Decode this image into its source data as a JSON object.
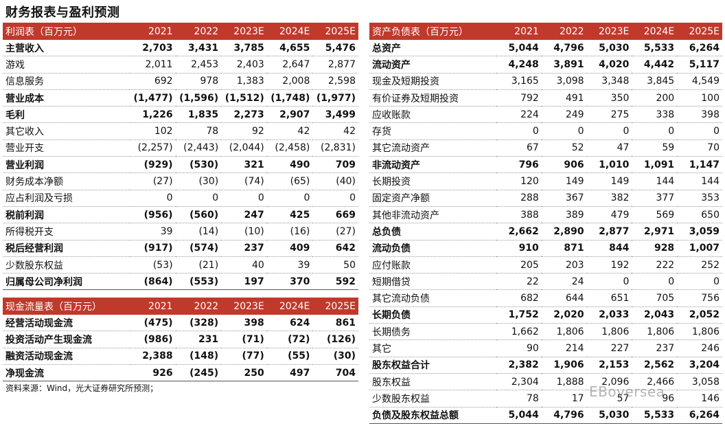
{
  "title": "财务报表与盈利预测",
  "years": [
    "2021",
    "2022",
    "2023E",
    "2024E",
    "2025E"
  ],
  "income": {
    "header": "利润表（百万元）",
    "rows": [
      {
        "label": "主营收入",
        "values": [
          "2,703",
          "3,431",
          "3,785",
          "4,655",
          "5,476"
        ],
        "bold": true
      },
      {
        "label": "游戏",
        "values": [
          "2,011",
          "2,453",
          "2,403",
          "2,647",
          "2,877"
        ],
        "bold": false
      },
      {
        "label": "信息服务",
        "values": [
          "692",
          "978",
          "1,383",
          "2,008",
          "2,598"
        ],
        "bold": false
      },
      {
        "label": "营业成本",
        "values": [
          "(1,477)",
          "(1,596)",
          "(1,512)",
          "(1,748)",
          "(1,977)"
        ],
        "bold": true
      },
      {
        "label": "毛利",
        "values": [
          "1,226",
          "1,835",
          "2,273",
          "2,907",
          "3,499"
        ],
        "bold": true
      },
      {
        "label": "其它收入",
        "values": [
          "102",
          "78",
          "92",
          "42",
          "42"
        ],
        "bold": false
      },
      {
        "label": "营业开支",
        "values": [
          "(2,257)",
          "(2,443)",
          "(2,044)",
          "(2,458)",
          "(2,831)"
        ],
        "bold": false
      },
      {
        "label": "营业利润",
        "values": [
          "(929)",
          "(530)",
          "321",
          "490",
          "709"
        ],
        "bold": true
      },
      {
        "label": "财务成本净额",
        "values": [
          "(27)",
          "(30)",
          "(74)",
          "(65)",
          "(40)"
        ],
        "bold": false
      },
      {
        "label": "应占利润及亏损",
        "values": [
          "0",
          "0",
          "0",
          "0",
          "0"
        ],
        "bold": false
      },
      {
        "label": "税前利润",
        "values": [
          "(956)",
          "(560)",
          "247",
          "425",
          "669"
        ],
        "bold": true
      },
      {
        "label": "所得税开支",
        "values": [
          "39",
          "(14)",
          "(10)",
          "(16)",
          "(27)"
        ],
        "bold": false
      },
      {
        "label": "税后经营利润",
        "values": [
          "(917)",
          "(574)",
          "237",
          "409",
          "642"
        ],
        "bold": true
      },
      {
        "label": "少数股东权益",
        "values": [
          "(53)",
          "(21)",
          "40",
          "39",
          "50"
        ],
        "bold": false
      },
      {
        "label": "归属母公司净利润",
        "values": [
          "(864)",
          "(553)",
          "197",
          "370",
          "592"
        ],
        "bold": true
      }
    ]
  },
  "cashflow": {
    "header": "现金流量表（百万元）",
    "rows": [
      {
        "label": "经营活动现金流",
        "values": [
          "(475)",
          "(328)",
          "398",
          "624",
          "861"
        ],
        "bold": true
      },
      {
        "label": "投资活动产生现金流",
        "values": [
          "(986)",
          "231",
          "(71)",
          "(72)",
          "(126)"
        ],
        "bold": true
      },
      {
        "label": "融资活动现金流",
        "values": [
          "2,388",
          "(148)",
          "(77)",
          "(55)",
          "(30)"
        ],
        "bold": true
      },
      {
        "label": "净现金流",
        "values": [
          "926",
          "(245)",
          "250",
          "497",
          "704"
        ],
        "bold": true
      }
    ]
  },
  "balance": {
    "header": "资产负债表（百万元）",
    "rows": [
      {
        "label": "总资产",
        "values": [
          "5,044",
          "4,796",
          "5,030",
          "5,533",
          "6,264"
        ],
        "bold": true
      },
      {
        "label": "流动资产",
        "values": [
          "4,248",
          "3,891",
          "4,020",
          "4,442",
          "5,117"
        ],
        "bold": true
      },
      {
        "label": "现金及短期投资",
        "values": [
          "3,165",
          "3,098",
          "3,348",
          "3,845",
          "4,549"
        ],
        "bold": false
      },
      {
        "label": "有价证券及短期投资",
        "values": [
          "792",
          "491",
          "350",
          "200",
          "100"
        ],
        "bold": false
      },
      {
        "label": "应收账款",
        "values": [
          "224",
          "249",
          "275",
          "338",
          "398"
        ],
        "bold": false
      },
      {
        "label": "存货",
        "values": [
          "0",
          "0",
          "0",
          "0",
          "0"
        ],
        "bold": false
      },
      {
        "label": "其它流动资产",
        "values": [
          "67",
          "52",
          "47",
          "59",
          "70"
        ],
        "bold": false
      },
      {
        "label": "非流动资产",
        "values": [
          "796",
          "906",
          "1,010",
          "1,091",
          "1,147"
        ],
        "bold": true
      },
      {
        "label": "长期投资",
        "values": [
          "120",
          "149",
          "149",
          "144",
          "144"
        ],
        "bold": false
      },
      {
        "label": "固定资产净额",
        "values": [
          "288",
          "367",
          "382",
          "377",
          "353"
        ],
        "bold": false
      },
      {
        "label": "其他非流动资产",
        "values": [
          "388",
          "389",
          "479",
          "569",
          "650"
        ],
        "bold": false
      },
      {
        "label": "总负债",
        "values": [
          "2,662",
          "2,890",
          "2,877",
          "2,971",
          "3,059"
        ],
        "bold": true
      },
      {
        "label": "流动负债",
        "values": [
          "910",
          "871",
          "844",
          "928",
          "1,007"
        ],
        "bold": true
      },
      {
        "label": "应付账款",
        "values": [
          "205",
          "203",
          "192",
          "222",
          "252"
        ],
        "bold": false
      },
      {
        "label": "短期借贷",
        "values": [
          "22",
          "24",
          "0",
          "0",
          "0"
        ],
        "bold": false
      },
      {
        "label": "其它流动负债",
        "values": [
          "682",
          "644",
          "651",
          "705",
          "756"
        ],
        "bold": false
      },
      {
        "label": "长期负债",
        "values": [
          "1,752",
          "2,020",
          "2,033",
          "2,043",
          "2,052"
        ],
        "bold": true
      },
      {
        "label": "长期债务",
        "values": [
          "1,662",
          "1,806",
          "1,806",
          "1,806",
          "1,806"
        ],
        "bold": false
      },
      {
        "label": "其它",
        "values": [
          "90",
          "214",
          "227",
          "237",
          "246"
        ],
        "bold": false
      },
      {
        "label": "股东权益合计",
        "values": [
          "2,382",
          "1,906",
          "2,153",
          "2,562",
          "3,204"
        ],
        "bold": true
      },
      {
        "label": "股东权益",
        "values": [
          "2,304",
          "1,888",
          "2,096",
          "2,466",
          "3,058"
        ],
        "bold": false
      },
      {
        "label": "少数股东权益",
        "values": [
          "78",
          "17",
          "57",
          "96",
          "146"
        ],
        "bold": false
      },
      {
        "label": "负债及股东权益总额",
        "values": [
          "5,044",
          "4,796",
          "5,030",
          "5,533",
          "6,264"
        ],
        "bold": true
      }
    ]
  },
  "source": "资料来源：Wind，光大证券研究所预测；",
  "watermark": "EBoversea",
  "colors": {
    "header_bg": "#c0392b",
    "header_text": "#ffffff"
  }
}
